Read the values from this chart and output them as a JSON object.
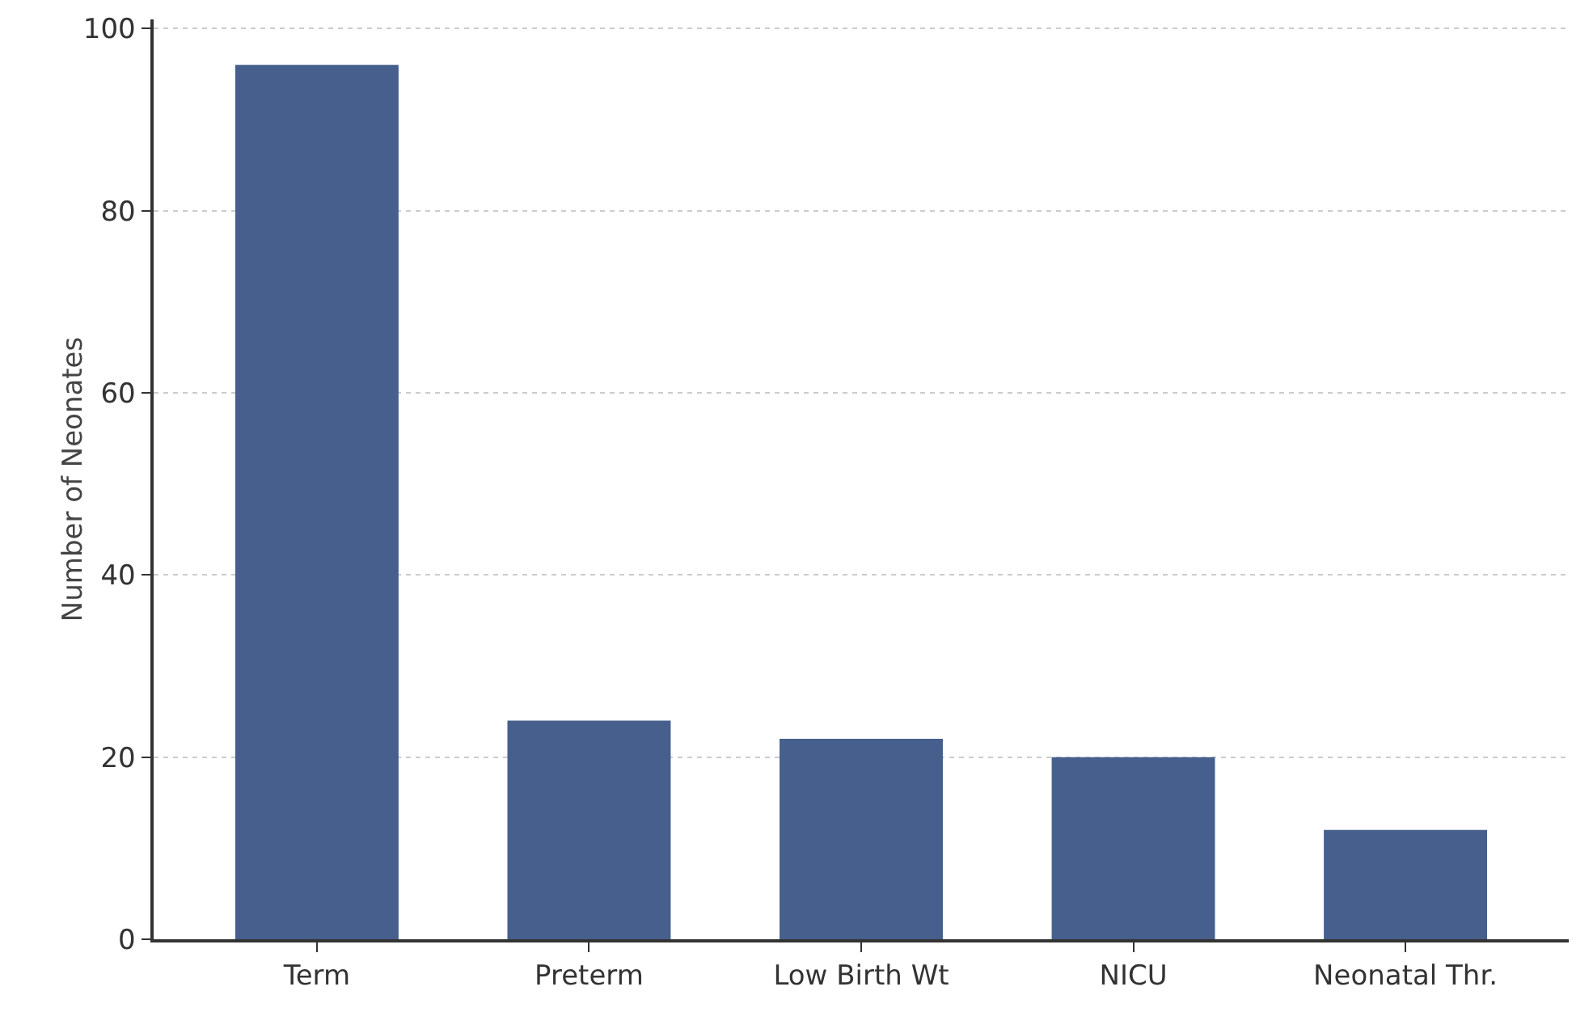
{
  "chart_data": {
    "type": "bar",
    "ylabel": "Number of Neonates",
    "categories": [
      "Term",
      "Preterm",
      "Low Birth Wt",
      "NICU",
      "Neonatal Thr."
    ],
    "values": [
      96,
      24,
      22,
      20,
      12
    ],
    "color": "#465f8c",
    "ylim": [
      0,
      101
    ],
    "yticks": [
      0,
      20,
      40,
      60,
      80,
      100
    ],
    "grid": "y"
  }
}
